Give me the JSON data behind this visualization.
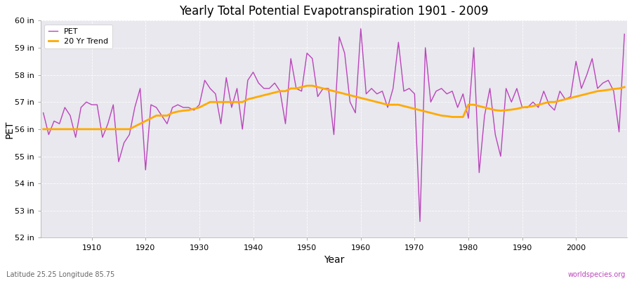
{
  "title": "Yearly Total Potential Evapotranspiration 1901 - 2009",
  "xlabel": "Year",
  "ylabel": "PET",
  "subtitle_left": "Latitude 25.25 Longitude 85.75",
  "subtitle_right": "worldspecies.org",
  "ylim": [
    52,
    60
  ],
  "ytick_labels": [
    "52 in",
    "53 in",
    "54 in",
    "55 in",
    "56 in",
    "57 in",
    "58 in",
    "59 in",
    "60 in"
  ],
  "ytick_values": [
    52,
    53,
    54,
    55,
    56,
    57,
    58,
    59,
    60
  ],
  "pet_color": "#bb44bb",
  "trend_color": "#ffaa00",
  "bg_color": "#e8e8ee",
  "fig_color": "#ffffff",
  "years": [
    1901,
    1902,
    1903,
    1904,
    1905,
    1906,
    1907,
    1908,
    1909,
    1910,
    1911,
    1912,
    1913,
    1914,
    1915,
    1916,
    1917,
    1918,
    1919,
    1920,
    1921,
    1922,
    1923,
    1924,
    1925,
    1926,
    1927,
    1928,
    1929,
    1930,
    1931,
    1932,
    1933,
    1934,
    1935,
    1936,
    1937,
    1938,
    1939,
    1940,
    1941,
    1942,
    1943,
    1944,
    1945,
    1946,
    1947,
    1948,
    1949,
    1950,
    1951,
    1952,
    1953,
    1954,
    1955,
    1956,
    1957,
    1958,
    1959,
    1960,
    1961,
    1962,
    1963,
    1964,
    1965,
    1966,
    1967,
    1968,
    1969,
    1970,
    1971,
    1972,
    1973,
    1974,
    1975,
    1976,
    1977,
    1978,
    1979,
    1980,
    1981,
    1982,
    1983,
    1984,
    1985,
    1986,
    1987,
    1988,
    1989,
    1990,
    1991,
    1992,
    1993,
    1994,
    1995,
    1996,
    1997,
    1998,
    1999,
    2000,
    2001,
    2002,
    2003,
    2004,
    2005,
    2006,
    2007,
    2008,
    2009
  ],
  "pet_values": [
    56.6,
    55.8,
    56.3,
    56.2,
    56.8,
    56.5,
    55.7,
    56.8,
    57.0,
    56.9,
    56.9,
    55.7,
    56.2,
    56.9,
    54.8,
    55.5,
    55.8,
    56.8,
    57.5,
    54.5,
    56.9,
    56.8,
    56.5,
    56.2,
    56.8,
    56.9,
    56.8,
    56.8,
    56.7,
    56.9,
    57.8,
    57.5,
    57.3,
    56.2,
    57.9,
    56.8,
    57.5,
    56.0,
    57.8,
    58.1,
    57.7,
    57.5,
    57.5,
    57.7,
    57.4,
    56.2,
    58.6,
    57.5,
    57.4,
    58.8,
    58.6,
    57.2,
    57.5,
    57.5,
    55.8,
    59.4,
    58.8,
    57.0,
    56.6,
    59.7,
    57.3,
    57.5,
    57.3,
    57.4,
    56.8,
    57.5,
    59.2,
    57.4,
    57.5,
    57.3,
    52.6,
    59.0,
    57.0,
    57.4,
    57.5,
    57.3,
    57.4,
    56.8,
    57.3,
    56.4,
    59.0,
    54.4,
    56.5,
    57.5,
    55.8,
    55.0,
    57.5,
    57.0,
    57.5,
    56.8,
    56.8,
    57.0,
    56.8,
    57.4,
    56.9,
    56.7,
    57.4,
    57.1,
    57.2,
    58.5,
    57.5,
    58.0,
    58.6,
    57.5,
    57.7,
    57.8,
    57.4,
    55.9,
    59.5
  ],
  "trend_values": [
    56.0,
    56.0,
    56.0,
    56.0,
    56.0,
    56.0,
    56.0,
    56.0,
    56.0,
    56.0,
    56.0,
    56.0,
    56.0,
    56.0,
    56.0,
    56.0,
    56.0,
    56.1,
    56.2,
    56.3,
    56.4,
    56.5,
    56.5,
    56.5,
    56.6,
    56.65,
    56.68,
    56.7,
    56.75,
    56.8,
    56.9,
    57.0,
    57.0,
    57.0,
    57.0,
    57.0,
    57.0,
    57.0,
    57.1,
    57.15,
    57.2,
    57.25,
    57.3,
    57.35,
    57.4,
    57.4,
    57.5,
    57.5,
    57.55,
    57.6,
    57.6,
    57.55,
    57.5,
    57.45,
    57.4,
    57.35,
    57.3,
    57.25,
    57.2,
    57.15,
    57.1,
    57.05,
    57.0,
    56.95,
    56.9,
    56.9,
    56.9,
    56.85,
    56.8,
    56.75,
    56.7,
    56.65,
    56.6,
    56.55,
    56.5,
    56.48,
    56.45,
    56.45,
    56.45,
    56.9,
    56.9,
    56.85,
    56.8,
    56.75,
    56.7,
    56.68,
    56.7,
    56.72,
    56.75,
    56.8,
    56.82,
    56.85,
    56.9,
    56.95,
    57.0,
    57.0,
    57.05,
    57.1,
    57.15,
    57.2,
    57.25,
    57.3,
    57.35,
    57.4,
    57.42,
    57.45,
    57.48,
    57.5,
    57.55
  ]
}
